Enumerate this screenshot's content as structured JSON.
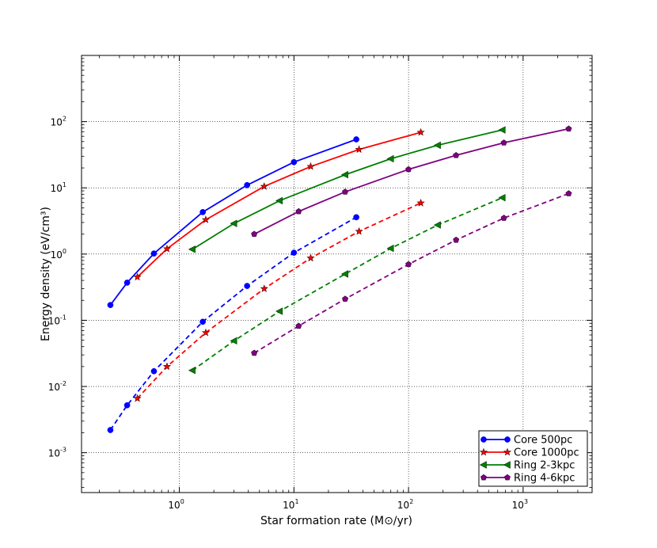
{
  "chart_data": {
    "type": "line",
    "xlabel": "Star formation rate (M⊙/yr)",
    "ylabel": "Energy density (eV/cm³)",
    "xscale": "log",
    "yscale": "log",
    "xlim": [
      0.14,
      4000
    ],
    "ylim": [
      0.00025,
      1000
    ],
    "grid": true,
    "legend_position": "lower-right",
    "x_ticks": [
      {
        "value": 1,
        "base": "10",
        "exp": "0"
      },
      {
        "value": 10,
        "base": "10",
        "exp": "1"
      },
      {
        "value": 100,
        "base": "10",
        "exp": "2"
      },
      {
        "value": 1000,
        "base": "10",
        "exp": "3"
      }
    ],
    "y_ticks": [
      {
        "value": 0.001,
        "base": "10",
        "exp": "-3"
      },
      {
        "value": 0.01,
        "base": "10",
        "exp": "-2"
      },
      {
        "value": 0.1,
        "base": "10",
        "exp": "-1"
      },
      {
        "value": 1,
        "base": "10",
        "exp": "0"
      },
      {
        "value": 10,
        "base": "10",
        "exp": "1"
      },
      {
        "value": 100,
        "base": "10",
        "exp": "2"
      }
    ],
    "series": [
      {
        "name": "Core 500pc",
        "color": "#0000ff",
        "marker": "circle",
        "linestyle": "solid",
        "x": [
          0.25,
          0.35,
          0.6,
          1.6,
          3.9,
          10,
          35
        ],
        "y": [
          0.17,
          0.37,
          1.02,
          4.3,
          11,
          24.5,
          54
        ]
      },
      {
        "name": "Core 500pc",
        "color": "#0000ff",
        "marker": "circle",
        "linestyle": "dashed",
        "legend": false,
        "x": [
          0.25,
          0.35,
          0.6,
          1.6,
          3.9,
          10,
          35
        ],
        "y": [
          0.0022,
          0.0052,
          0.017,
          0.095,
          0.33,
          1.05,
          3.6
        ]
      },
      {
        "name": "Core 1000pc",
        "color": "#ff0000",
        "marker": "star",
        "linestyle": "solid",
        "x": [
          0.43,
          0.78,
          1.7,
          5.5,
          14,
          37,
          128
        ],
        "y": [
          0.45,
          1.2,
          3.3,
          10.5,
          21,
          38,
          69
        ]
      },
      {
        "name": "Core 1000pc",
        "color": "#ff0000",
        "marker": "star",
        "linestyle": "dashed",
        "legend": false,
        "x": [
          0.43,
          0.78,
          1.7,
          5.5,
          14,
          37,
          128
        ],
        "y": [
          0.0066,
          0.02,
          0.065,
          0.3,
          0.87,
          2.2,
          5.9
        ]
      },
      {
        "name": "Ring 2-3kpc",
        "color": "#008000",
        "marker": "triangle-left",
        "linestyle": "solid",
        "x": [
          1.3,
          3.0,
          7.5,
          28,
          70,
          180,
          660
        ],
        "y": [
          1.18,
          2.9,
          6.4,
          15.8,
          27.5,
          44,
          75
        ]
      },
      {
        "name": "Ring 2-3kpc",
        "color": "#008000",
        "marker": "triangle-left",
        "linestyle": "dashed",
        "legend": false,
        "x": [
          1.3,
          3.0,
          7.5,
          28,
          70,
          180,
          660
        ],
        "y": [
          0.0175,
          0.049,
          0.137,
          0.5,
          1.22,
          2.75,
          7.1
        ]
      },
      {
        "name": "Ring 4-6kpc",
        "color": "#800080",
        "marker": "pentagon",
        "linestyle": "solid",
        "x": [
          4.5,
          11,
          28,
          100,
          260,
          680,
          2500
        ],
        "y": [
          2.0,
          4.4,
          8.7,
          19,
          31,
          48,
          78
        ]
      },
      {
        "name": "Ring 4-6kpc",
        "color": "#800080",
        "marker": "pentagon",
        "linestyle": "dashed",
        "legend": false,
        "x": [
          4.5,
          11,
          28,
          100,
          260,
          680,
          2500
        ],
        "y": [
          0.032,
          0.082,
          0.21,
          0.7,
          1.63,
          3.5,
          8.2
        ]
      }
    ]
  }
}
